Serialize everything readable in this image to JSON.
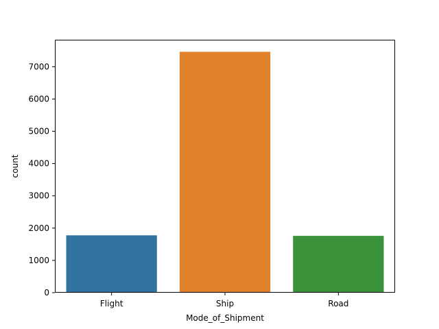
{
  "chart_data": {
    "type": "bar",
    "title": "",
    "xlabel": "Mode_of_Shipment",
    "ylabel": "count",
    "categories": [
      "Flight",
      "Ship",
      "Road"
    ],
    "values": [
      1777,
      7462,
      1760
    ],
    "ylim": [
      0,
      7835
    ],
    "yticks": [
      0,
      1000,
      2000,
      3000,
      4000,
      5000,
      6000,
      7000
    ],
    "ytick_labels": [
      "0",
      "1000",
      "2000",
      "3000",
      "4000",
      "5000",
      "6000",
      "7000"
    ],
    "colors": [
      "#3274a1",
      "#e1812c",
      "#3a923a"
    ],
    "grid": false,
    "legend": "none"
  }
}
